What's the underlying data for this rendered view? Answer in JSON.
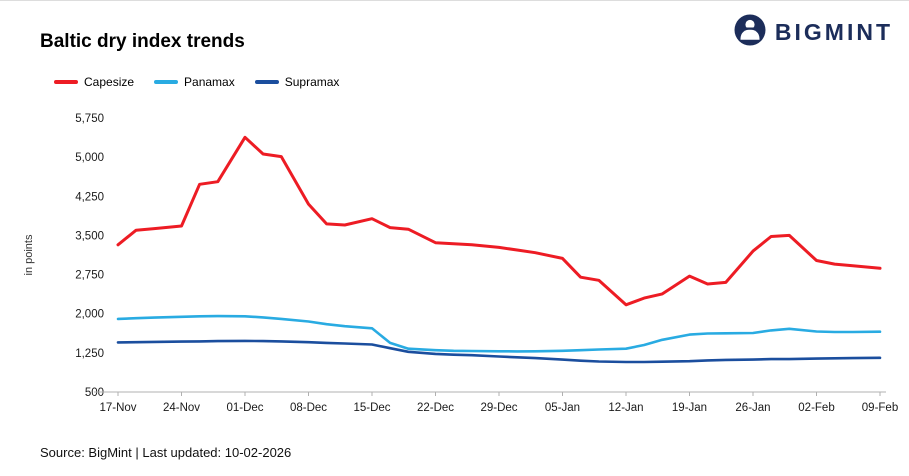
{
  "page": {
    "title": "Baltic dry index trends"
  },
  "logo": {
    "text": "BIGMINT",
    "color": "#1c2d5a"
  },
  "legend": [
    {
      "label": "Capesize",
      "color": "#ed1c24"
    },
    {
      "label": "Panamax",
      "color": "#29abe2"
    },
    {
      "label": "Supramax",
      "color": "#1b4e9e"
    }
  ],
  "footer": {
    "text": "Source: BigMint | Last updated: 10-02-2026"
  },
  "chart_data": {
    "type": "line",
    "title": "Baltic dry index trends",
    "xlabel": "",
    "ylabel": "in points",
    "ylim": [
      500,
      5750
    ],
    "xlim": [
      0,
      84
    ],
    "grid": false,
    "legend_position": "top-left",
    "yticks": [
      {
        "value": 500,
        "label": "500"
      },
      {
        "value": 1250,
        "label": "1,250"
      },
      {
        "value": 2000,
        "label": "2,000"
      },
      {
        "value": 2750,
        "label": "2,750"
      },
      {
        "value": 3500,
        "label": "3,500"
      },
      {
        "value": 4250,
        "label": "4,250"
      },
      {
        "value": 5000,
        "label": "5,000"
      },
      {
        "value": 5750,
        "label": "5,750"
      }
    ],
    "xticks": [
      {
        "day": 0,
        "label": "17-Nov"
      },
      {
        "day": 7,
        "label": "24-Nov"
      },
      {
        "day": 14,
        "label": "01-Dec"
      },
      {
        "day": 21,
        "label": "08-Dec"
      },
      {
        "day": 28,
        "label": "15-Dec"
      },
      {
        "day": 35,
        "label": "22-Dec"
      },
      {
        "day": 42,
        "label": "29-Dec"
      },
      {
        "day": 49,
        "label": "05-Jan"
      },
      {
        "day": 56,
        "label": "12-Jan"
      },
      {
        "day": 63,
        "label": "19-Jan"
      },
      {
        "day": 70,
        "label": "26-Jan"
      },
      {
        "day": 77,
        "label": "02-Feb"
      },
      {
        "day": 84,
        "label": "09-Feb"
      }
    ],
    "x_days": [
      0,
      2,
      4,
      7,
      9,
      11,
      14,
      16,
      18,
      21,
      23,
      25,
      28,
      30,
      32,
      35,
      37,
      39,
      42,
      44,
      46,
      49,
      51,
      53,
      56,
      58,
      60,
      63,
      65,
      67,
      70,
      72,
      74,
      77,
      79,
      81,
      84
    ],
    "series": [
      {
        "name": "Capesize",
        "color": "#ed1c24",
        "values": [
          3320,
          3600,
          3630,
          3680,
          4480,
          4530,
          5380,
          5060,
          5010,
          4100,
          3720,
          3700,
          3820,
          3650,
          3620,
          3360,
          3340,
          3320,
          3270,
          3220,
          3170,
          3060,
          2700,
          2640,
          2170,
          2300,
          2380,
          2720,
          2570,
          2600,
          3200,
          3480,
          3500,
          3020,
          2950,
          2920,
          2870
        ]
      },
      {
        "name": "Panamax",
        "color": "#29abe2",
        "values": [
          1900,
          1915,
          1925,
          1940,
          1950,
          1955,
          1950,
          1930,
          1900,
          1850,
          1800,
          1760,
          1720,
          1440,
          1330,
          1300,
          1290,
          1285,
          1280,
          1278,
          1280,
          1290,
          1300,
          1315,
          1330,
          1400,
          1500,
          1600,
          1620,
          1625,
          1630,
          1680,
          1710,
          1660,
          1650,
          1650,
          1655
        ]
      },
      {
        "name": "Supramax",
        "color": "#1b4e9e",
        "values": [
          1450,
          1455,
          1460,
          1465,
          1470,
          1475,
          1480,
          1475,
          1470,
          1455,
          1440,
          1430,
          1410,
          1340,
          1270,
          1230,
          1215,
          1205,
          1180,
          1165,
          1150,
          1120,
          1100,
          1085,
          1075,
          1075,
          1080,
          1090,
          1105,
          1115,
          1120,
          1130,
          1130,
          1140,
          1145,
          1150,
          1155
        ]
      }
    ]
  }
}
